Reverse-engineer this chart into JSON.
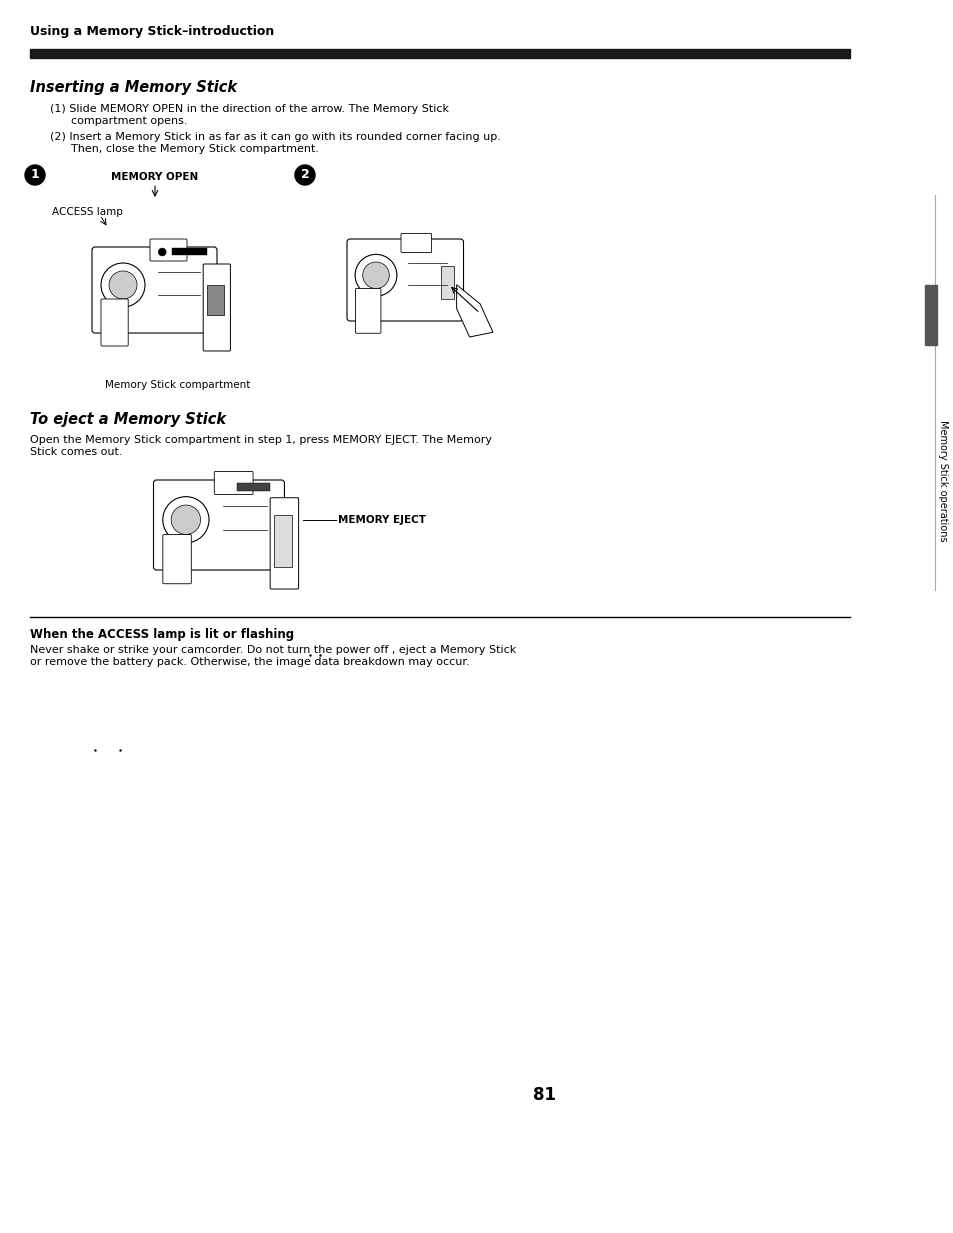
{
  "page_bg": "#ffffff",
  "header_bar_color": "#1a1a1a",
  "header_text": "Using a Memory Stick–introduction",
  "section1_title": "Inserting a Memory Stick",
  "section1_step1": "(1) Slide MEMORY OPEN in the direction of the arrow. The Memory Stick\n      compartment opens.",
  "section1_step2": "(2) Insert a Memory Stick in as far as it can go with its rounded corner facing up.\n      Then, close the Memory Stick compartment.",
  "fig1_sublabel_memopen": "MEMORY OPEN",
  "fig1_sublabel_access": "ACCESS lamp",
  "fig1_sublabel_compartment": "Memory Stick compartment",
  "section2_title": "To eject a Memory Stick",
  "section2_body": "Open the Memory Stick compartment in step 1, press MEMORY EJECT. The Memory\nStick comes out.",
  "fig3_sublabel": "MEMORY EJECT",
  "warning_title": "When the ACCESS lamp is lit or flashing",
  "warning_body": "Never shake or strike your camcorder. Do not turn the power off , eject a Memory Stick\nor remove the battery pack. Otherwise, the image data breakdown may occur.",
  "sidebar_text": "Memory Stick operations",
  "page_number": "81",
  "header_fontsize": 9,
  "section_title_fontsize": 10.5,
  "body_fontsize": 8.0,
  "label_fontsize": 7.5,
  "warning_title_fontsize": 8.5,
  "warning_body_fontsize": 8.0,
  "page_num_fontsize": 12
}
